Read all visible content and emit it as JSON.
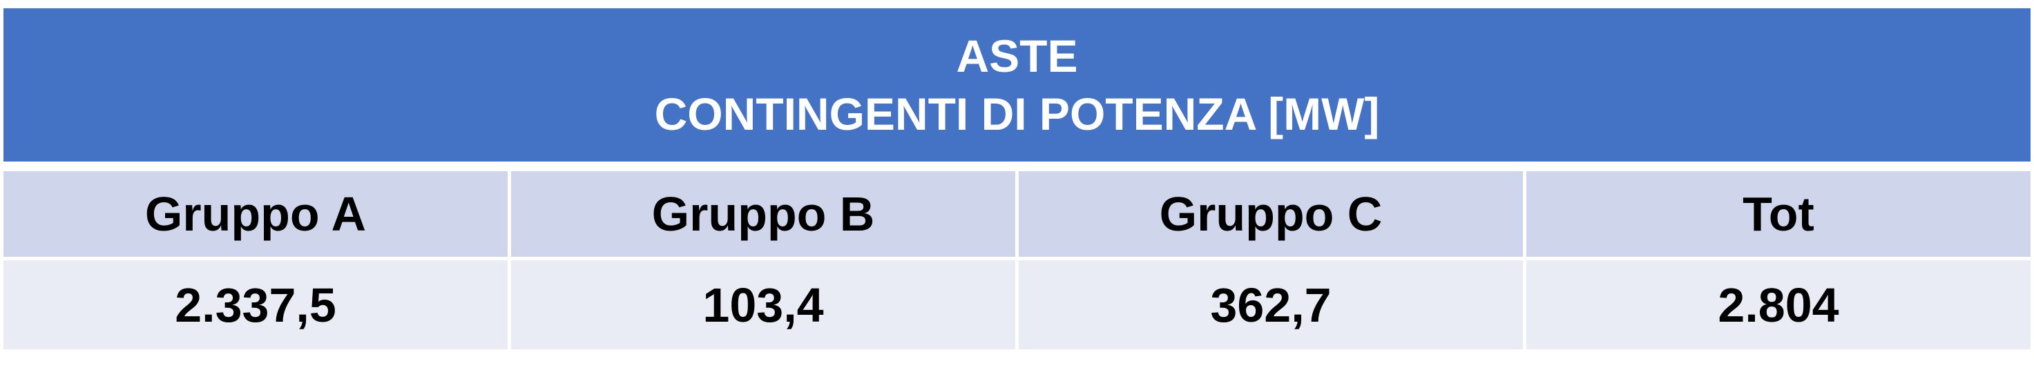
{
  "title": {
    "line1": "ASTE",
    "line2": "CONTINGENTI DI POTENZA [MW]"
  },
  "colors": {
    "header": "#4472c4",
    "header_row": "#cfd5ea",
    "value_row": "#e9ebf5"
  },
  "table": {
    "headers": [
      "Gruppo A",
      "Gruppo B",
      "Gruppo C",
      "Tot"
    ],
    "values": [
      "2.337,5",
      "103,4",
      "362,7",
      "2.804"
    ]
  }
}
